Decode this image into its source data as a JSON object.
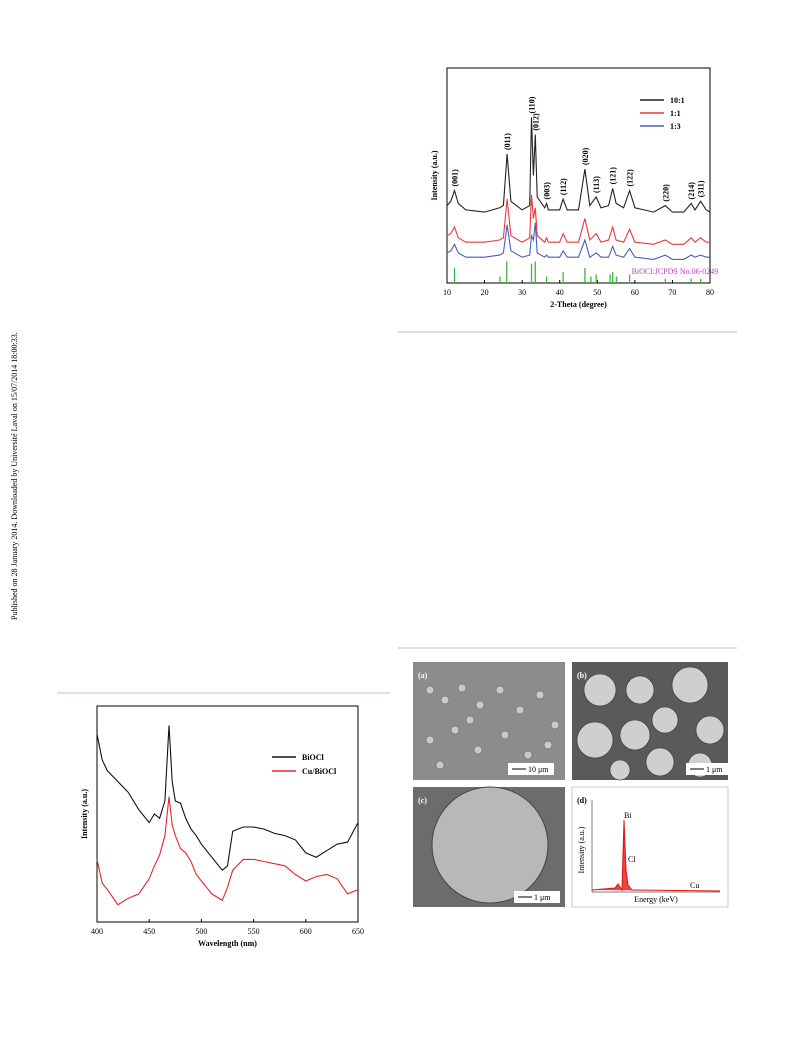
{
  "sidebar": "Published on 28 January 2014. Downloaded by Université Laval on 15/07/2014 18:00:33.",
  "chart_data": [
    {
      "type": "line",
      "x_label": "2-Theta (degree)",
      "y_label": "Intensity (a.u.)",
      "reference_label": "BiOCl:JCPDS No.06-0249",
      "x": [
        10,
        11,
        12,
        13,
        15,
        20,
        24,
        25,
        26,
        27,
        30,
        32,
        32.5,
        33,
        33.5,
        34,
        36,
        36.5,
        37,
        40,
        40.9,
        42,
        45,
        46.7,
        48,
        49.7,
        51,
        53,
        54.1,
        55,
        57,
        58.6,
        60,
        65,
        68.1,
        70,
        73,
        75,
        76,
        77.5,
        79,
        80
      ],
      "series": [
        {
          "name": "10:1",
          "color": "#222222",
          "values": [
            36,
            38,
            43,
            37,
            34,
            33,
            35,
            36,
            60,
            38,
            34,
            36,
            77,
            50,
            69,
            40,
            35,
            37,
            34,
            34,
            39,
            34,
            34,
            53,
            36,
            40,
            35,
            36,
            44,
            37,
            35,
            43,
            35,
            33,
            36,
            33,
            33,
            37,
            34,
            38,
            34,
            33
          ]
        },
        {
          "name": "1:1",
          "color": "#e8383b",
          "values": [
            22,
            23,
            26,
            21,
            19,
            19,
            20,
            21,
            39,
            22,
            19,
            21,
            41,
            30,
            35,
            22,
            19,
            21,
            19,
            19,
            23,
            19,
            19,
            30,
            20,
            23,
            19,
            20,
            26,
            20,
            19,
            25,
            19,
            18,
            20,
            18,
            18,
            21,
            19,
            21,
            19,
            19
          ]
        },
        {
          "name": "1:3",
          "color": "#4a5fb8",
          "values": [
            14,
            15,
            18,
            14,
            12,
            12,
            13,
            14,
            27,
            15,
            12,
            13,
            22,
            20,
            28,
            14,
            12,
            13,
            12,
            12,
            15,
            12,
            12,
            20,
            12,
            14,
            12,
            12,
            17,
            13,
            12,
            16,
            12,
            11,
            13,
            11,
            11,
            13,
            12,
            13,
            12,
            12
          ]
        }
      ],
      "reference": {
        "color": "#3cb83c",
        "x": [
          12,
          24.1,
          25.9,
          32.5,
          33.5,
          36.5,
          40.9,
          46.7,
          48.3,
          49.7,
          53.4,
          54.1,
          55.1,
          58.6,
          68.1,
          75,
          77.5
        ],
        "values": [
          7,
          3,
          10,
          9,
          10,
          3,
          5,
          7,
          3,
          4,
          4,
          5,
          3,
          4,
          2,
          2,
          2
        ]
      },
      "annotations": [
        {
          "text": "(001)",
          "x": 12
        },
        {
          "text": "(011)",
          "x": 26
        },
        {
          "text": "(110)",
          "x": 32.5
        },
        {
          "text": "(012)",
          "x": 33.5
        },
        {
          "text": "(003)",
          "x": 36.5
        },
        {
          "text": "(112)",
          "x": 40.9
        },
        {
          "text": "(020)",
          "x": 46.7
        },
        {
          "text": "(113)",
          "x": 49.7
        },
        {
          "text": "(121)",
          "x": 54.1
        },
        {
          "text": "(122)",
          "x": 58.6
        },
        {
          "text": "(220)",
          "x": 68.1
        },
        {
          "text": "(214)",
          "x": 75
        },
        {
          "text": "(311)",
          "x": 77.5
        }
      ],
      "xlim": [
        10,
        80
      ],
      "xticks": [
        10,
        20,
        30,
        40,
        50,
        60,
        70,
        80
      ],
      "ylim": [
        0,
        100
      ],
      "legend": "top-right"
    },
    {
      "type": "line",
      "x_label": "Wavelength (nm)",
      "y_label": "Intensity (a.u.)",
      "x": [
        400,
        405,
        410,
        420,
        430,
        440,
        450,
        455,
        460,
        465,
        469,
        472,
        475,
        480,
        485,
        490,
        495,
        500,
        510,
        520,
        525,
        530,
        540,
        550,
        560,
        570,
        580,
        590,
        600,
        610,
        620,
        630,
        640,
        650
      ],
      "series": [
        {
          "name": "BiOCl",
          "color": "#111111",
          "values": [
            87,
            75,
            70,
            65,
            60,
            52,
            46,
            50,
            48,
            56,
            91,
            65,
            56,
            55,
            48,
            43,
            40,
            36,
            30,
            24,
            26,
            42,
            44,
            44,
            43,
            41,
            40,
            38,
            32,
            30,
            33,
            36,
            37,
            46
          ]
        },
        {
          "name": "Cu/BiOCl",
          "color": "#e8262b",
          "values": [
            29,
            18,
            15,
            8,
            11,
            13,
            20,
            26,
            31,
            40,
            58,
            45,
            40,
            34,
            32,
            28,
            22,
            19,
            13,
            10,
            16,
            24,
            29,
            29,
            28,
            27,
            26,
            22,
            19,
            21,
            22,
            20,
            13,
            15
          ]
        }
      ],
      "xlim": [
        400,
        650
      ],
      "xticks": [
        400,
        450,
        500,
        550,
        600,
        650
      ],
      "ylim": [
        0,
        100
      ],
      "legend": "top-right"
    }
  ],
  "sem": {
    "panels": [
      {
        "label": "(a)",
        "scale": "10 μm"
      },
      {
        "label": "(b)",
        "scale": "1 μm"
      },
      {
        "label": "(c)",
        "scale": "1 μm"
      },
      {
        "label": "(d)"
      }
    ],
    "eds": {
      "y_label": "Intensity (a.u.)",
      "x_label": "Energy (keV)",
      "peaks": [
        "Bi",
        "Cl",
        "Cu"
      ]
    }
  }
}
